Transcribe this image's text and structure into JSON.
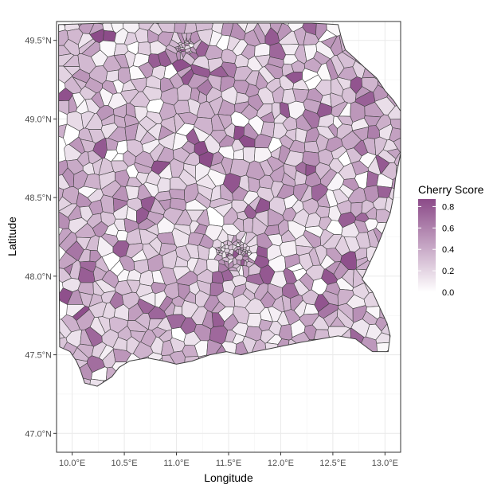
{
  "chart_data": {
    "type": "choropleth",
    "title": "",
    "xlabel": "Longitude",
    "ylabel": "Latitude",
    "xlim": [
      9.85,
      13.15
    ],
    "ylim": [
      46.88,
      49.62
    ],
    "x_ticks": [
      {
        "value": 10.0,
        "label": "10.0°E"
      },
      {
        "value": 10.5,
        "label": "10.5°E"
      },
      {
        "value": 11.0,
        "label": "11.0°E"
      },
      {
        "value": 11.5,
        "label": "11.5°E"
      },
      {
        "value": 12.0,
        "label": "12.0°E"
      },
      {
        "value": 12.5,
        "label": "12.5°E"
      },
      {
        "value": 13.0,
        "label": "13.0°E"
      }
    ],
    "y_ticks": [
      {
        "value": 47.0,
        "label": "47.0°N"
      },
      {
        "value": 47.5,
        "label": "47.5°N"
      },
      {
        "value": 48.0,
        "label": "48.0°N"
      },
      {
        "value": 48.5,
        "label": "48.5°N"
      },
      {
        "value": 49.0,
        "label": "49.0°N"
      },
      {
        "value": 49.5,
        "label": "49.5°N"
      }
    ],
    "grid": true,
    "legend": {
      "title": "Cherry Score",
      "placement": "right",
      "ticks": [
        {
          "value": 0.0,
          "label": "0.0"
        },
        {
          "value": 0.2,
          "label": "0.2"
        },
        {
          "value": 0.4,
          "label": "0.4"
        },
        {
          "value": 0.6,
          "label": "0.6"
        },
        {
          "value": 0.8,
          "label": "0.8"
        }
      ],
      "range": [
        0.0,
        0.87
      ]
    },
    "color_low": "#ffffff",
    "color_high": "#8b4a88",
    "border_color": "#404040",
    "region_outline": [
      [
        9.87,
        49.6
      ],
      [
        10.3,
        49.61
      ],
      [
        10.8,
        49.61
      ],
      [
        11.3,
        49.61
      ],
      [
        11.8,
        49.61
      ],
      [
        12.3,
        49.61
      ],
      [
        12.55,
        49.6
      ],
      [
        12.58,
        49.52
      ],
      [
        12.62,
        49.44
      ],
      [
        12.72,
        49.38
      ],
      [
        12.8,
        49.33
      ],
      [
        12.92,
        49.26
      ],
      [
        13.0,
        49.18
      ],
      [
        13.08,
        49.12
      ],
      [
        13.15,
        49.05
      ],
      [
        13.15,
        48.78
      ],
      [
        13.1,
        48.62
      ],
      [
        13.08,
        48.5
      ],
      [
        13.05,
        48.4
      ],
      [
        12.98,
        48.28
      ],
      [
        12.92,
        48.18
      ],
      [
        12.85,
        48.08
      ],
      [
        12.78,
        47.98
      ],
      [
        12.88,
        47.9
      ],
      [
        12.95,
        47.8
      ],
      [
        13.02,
        47.7
      ],
      [
        13.05,
        47.62
      ],
      [
        13.03,
        47.52
      ],
      [
        12.88,
        47.52
      ],
      [
        12.72,
        47.6
      ],
      [
        12.55,
        47.62
      ],
      [
        12.38,
        47.6
      ],
      [
        12.2,
        47.58
      ],
      [
        12.05,
        47.56
      ],
      [
        11.9,
        47.54
      ],
      [
        11.75,
        47.52
      ],
      [
        11.62,
        47.5
      ],
      [
        11.48,
        47.52
      ],
      [
        11.32,
        47.5
      ],
      [
        11.15,
        47.46
      ],
      [
        11.0,
        47.44
      ],
      [
        10.88,
        47.46
      ],
      [
        10.72,
        47.48
      ],
      [
        10.55,
        47.46
      ],
      [
        10.45,
        47.42
      ],
      [
        10.38,
        47.36
      ],
      [
        10.24,
        47.3
      ],
      [
        10.12,
        47.32
      ],
      [
        10.08,
        47.4
      ],
      [
        10.04,
        47.46
      ],
      [
        9.98,
        47.52
      ],
      [
        9.88,
        47.55
      ],
      [
        9.87,
        48.5
      ]
    ],
    "holes": [
      [
        10.55,
        49.46
      ],
      [
        11.45,
        49.52
      ],
      [
        12.4,
        49.52
      ],
      [
        10.82,
        49.1
      ],
      [
        11.65,
        49.0
      ],
      [
        12.25,
        49.25
      ],
      [
        11.12,
        48.92
      ],
      [
        10.43,
        48.78
      ],
      [
        9.98,
        48.86
      ],
      [
        10.28,
        48.25
      ],
      [
        10.55,
        48.65
      ],
      [
        11.35,
        48.35
      ],
      [
        12.5,
        48.28
      ],
      [
        11.95,
        48.85
      ],
      [
        12.62,
        48.75
      ],
      [
        10.95,
        48.05
      ],
      [
        12.18,
        48.05
      ],
      [
        10.58,
        47.88
      ],
      [
        11.85,
        47.93
      ],
      [
        12.32,
        47.95
      ],
      [
        10.4,
        48.06
      ],
      [
        11.05,
        47.65
      ],
      [
        12.78,
        48.6
      ],
      [
        10.95,
        49.33
      ],
      [
        12.85,
        49.1
      ]
    ],
    "darker_regions": [
      [
        10.3,
        49.55,
        0.86
      ],
      [
        12.72,
        49.25,
        0.82
      ],
      [
        11.62,
        48.88,
        0.85
      ],
      [
        10.32,
        48.84,
        0.8
      ],
      [
        12.62,
        48.1,
        0.84
      ],
      [
        10.48,
        48.15,
        0.78
      ],
      [
        11.25,
        48.78,
        0.86
      ],
      [
        12.05,
        49.05,
        0.8
      ],
      [
        12.38,
        47.8,
        0.82
      ],
      [
        11.82,
        48.12,
        0.8
      ],
      [
        10.85,
        49.35,
        0.78
      ],
      [
        12.95,
        48.55,
        0.76
      ],
      [
        12.84,
        47.82,
        0.85
      ],
      [
        10.7,
        48.43,
        0.8
      ],
      [
        11.45,
        47.98,
        0.74
      ]
    ],
    "dense_points": [
      {
        "x": 11.57,
        "y": 48.14
      },
      {
        "x": 11.07,
        "y": 49.45
      }
    ]
  }
}
